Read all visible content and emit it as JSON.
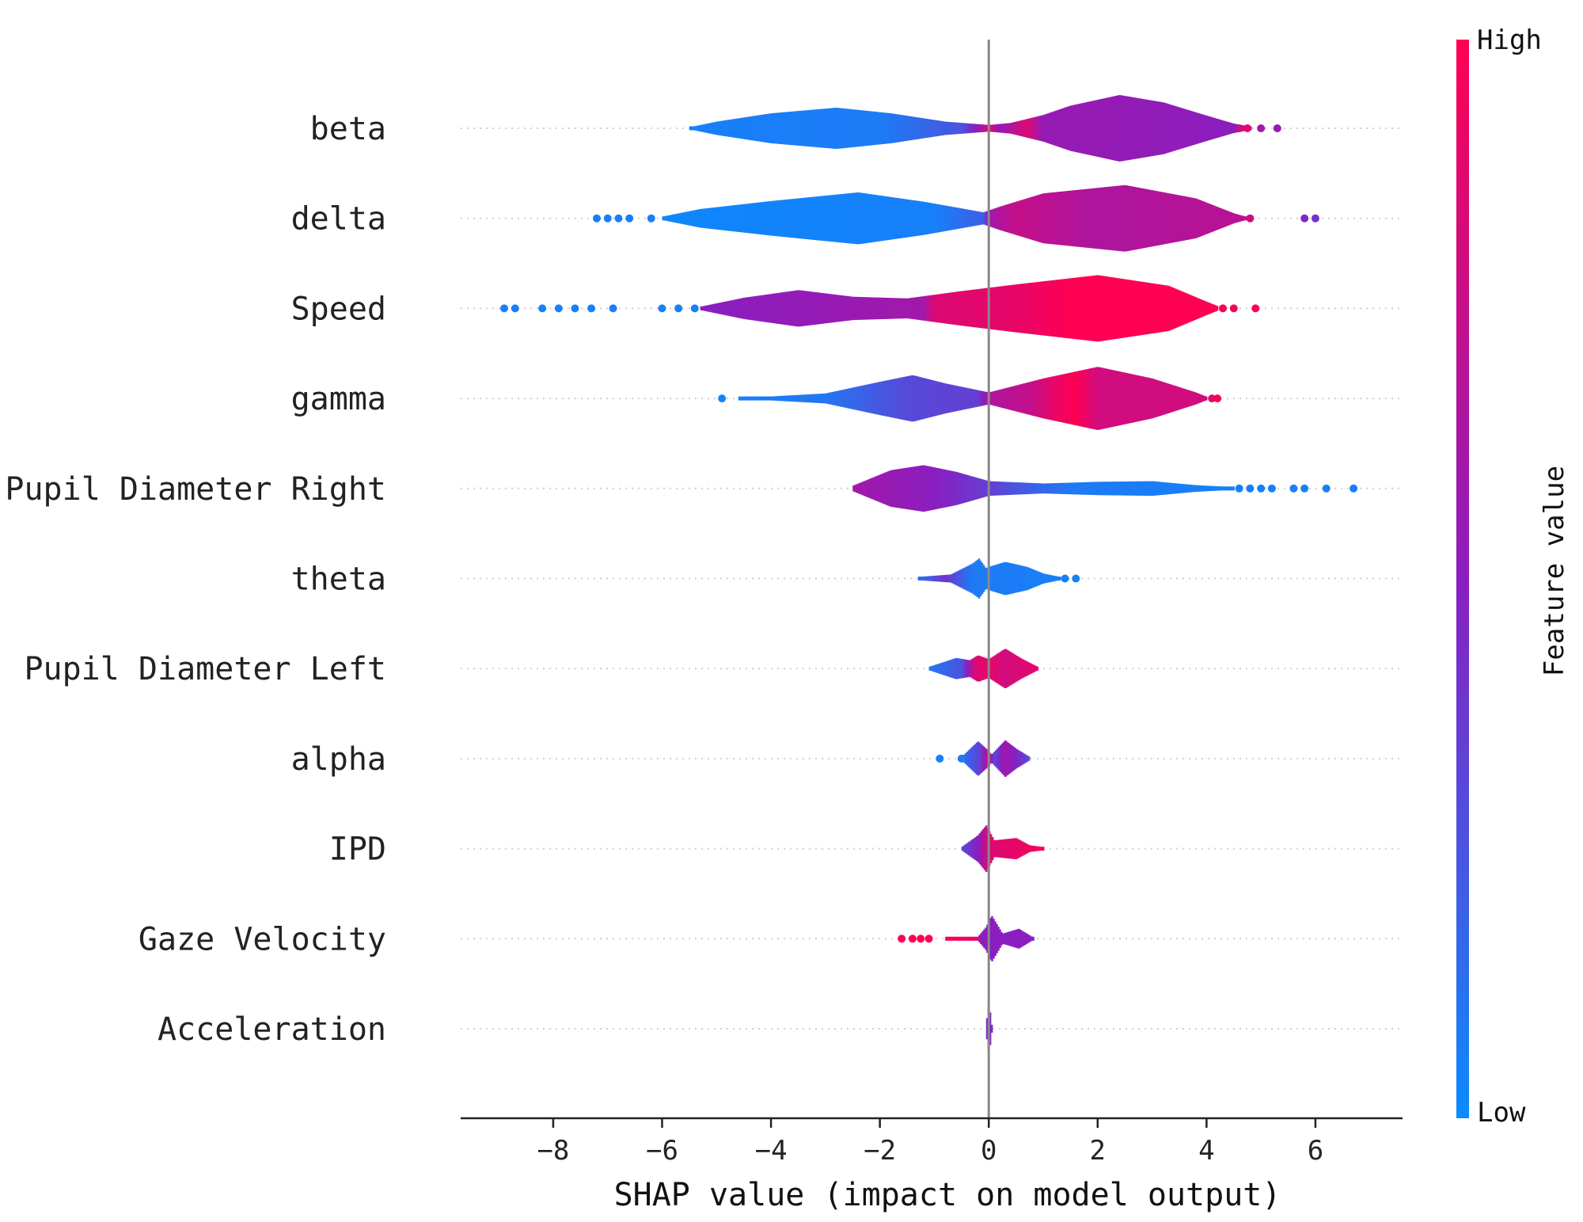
{
  "chart_data": {
    "type": "violin",
    "title": "",
    "xlabel": "SHAP value (impact on model output)",
    "ylabel": "",
    "xlim": [
      -9.7,
      7.6
    ],
    "xticks": [
      -8,
      -6,
      -4,
      -2,
      0,
      2,
      4,
      6
    ],
    "xtick_labels": [
      "−8",
      "−6",
      "−4",
      "−2",
      "0",
      "2",
      "4",
      "6"
    ],
    "colorbar": {
      "label": "Feature value",
      "high_label": "High",
      "low_label": "Low",
      "high_color": "#ff0052",
      "mid_color": "#8a1ec0",
      "low_color": "#0a8bff"
    },
    "features": [
      {
        "name": "beta",
        "range": [
          -5.5,
          5.4
        ],
        "violin": [
          [
            -5.5,
            0.03
          ],
          [
            -5.0,
            0.2
          ],
          [
            -4.0,
            0.45
          ],
          [
            -2.8,
            0.62
          ],
          [
            -1.8,
            0.45
          ],
          [
            -0.8,
            0.2
          ],
          [
            0.0,
            0.1
          ],
          [
            0.4,
            0.16
          ],
          [
            1.0,
            0.4
          ],
          [
            1.5,
            0.68
          ],
          [
            2.4,
            1.0
          ],
          [
            3.2,
            0.78
          ],
          [
            4.0,
            0.38
          ],
          [
            4.5,
            0.14
          ],
          [
            4.8,
            0.05
          ]
        ],
        "colors": [
          [
            -5.5,
            0.05
          ],
          [
            -2.0,
            0.07
          ],
          [
            -0.5,
            0.25
          ],
          [
            -0.15,
            0.6
          ],
          [
            0.0,
            0.9
          ],
          [
            0.2,
            0.55
          ],
          [
            0.7,
            0.85
          ],
          [
            1.0,
            0.55
          ],
          [
            2.0,
            0.55
          ],
          [
            4.8,
            0.5
          ]
        ],
        "dots": [
          [
            4.6,
            0.8
          ],
          [
            4.75,
            0.9
          ],
          [
            5.0,
            0.6
          ],
          [
            5.3,
            0.55
          ]
        ]
      },
      {
        "name": "delta",
        "range": [
          -7.2,
          6.0
        ],
        "violin": [
          [
            -6.0,
            0.05
          ],
          [
            -5.3,
            0.28
          ],
          [
            -4.0,
            0.52
          ],
          [
            -2.4,
            0.78
          ],
          [
            -1.2,
            0.5
          ],
          [
            -0.1,
            0.18
          ],
          [
            0.2,
            0.35
          ],
          [
            1.0,
            0.75
          ],
          [
            2.5,
            1.0
          ],
          [
            3.8,
            0.6
          ],
          [
            4.5,
            0.15
          ],
          [
            4.7,
            0.06
          ]
        ],
        "colors": [
          [
            -6.0,
            0.02
          ],
          [
            -1.0,
            0.05
          ],
          [
            -0.1,
            0.2
          ],
          [
            0.0,
            0.6
          ],
          [
            0.5,
            0.75
          ],
          [
            2.0,
            0.65
          ],
          [
            4.7,
            0.7
          ]
        ],
        "dots": [
          [
            -7.2,
            0.05
          ],
          [
            -7.0,
            0.05
          ],
          [
            -6.8,
            0.05
          ],
          [
            -6.6,
            0.05
          ],
          [
            -6.2,
            0.05
          ],
          [
            4.8,
            0.8
          ],
          [
            5.8,
            0.45
          ],
          [
            6.0,
            0.4
          ]
        ]
      },
      {
        "name": "Speed",
        "range": [
          -9.0,
          5.0
        ],
        "violin": [
          [
            -5.3,
            0.05
          ],
          [
            -4.5,
            0.32
          ],
          [
            -3.5,
            0.55
          ],
          [
            -2.5,
            0.35
          ],
          [
            -1.5,
            0.3
          ],
          [
            -0.5,
            0.52
          ],
          [
            0.5,
            0.72
          ],
          [
            2.0,
            1.0
          ],
          [
            3.3,
            0.68
          ],
          [
            4.0,
            0.2
          ],
          [
            4.2,
            0.07
          ]
        ],
        "colors": [
          [
            -5.3,
            0.5
          ],
          [
            -3.0,
            0.55
          ],
          [
            -1.2,
            0.6
          ],
          [
            -1.0,
            0.85
          ],
          [
            0.5,
            0.9
          ],
          [
            1.5,
            1.0
          ],
          [
            4.2,
            1.0
          ]
        ],
        "dots": [
          [
            -8.9,
            0.05
          ],
          [
            -8.7,
            0.05
          ],
          [
            -8.2,
            0.05
          ],
          [
            -7.9,
            0.05
          ],
          [
            -7.6,
            0.05
          ],
          [
            -7.3,
            0.05
          ],
          [
            -6.9,
            0.05
          ],
          [
            -6.0,
            0.05
          ],
          [
            -5.7,
            0.05
          ],
          [
            -5.4,
            0.05
          ],
          [
            4.3,
            0.95
          ],
          [
            4.5,
            0.95
          ],
          [
            4.9,
            1.0
          ]
        ]
      },
      {
        "name": "gamma",
        "range": [
          -4.9,
          4.2
        ],
        "violin": [
          [
            -4.6,
            0.03
          ],
          [
            -4.0,
            0.06
          ],
          [
            -3.0,
            0.15
          ],
          [
            -2.0,
            0.5
          ],
          [
            -1.4,
            0.7
          ],
          [
            -0.8,
            0.45
          ],
          [
            0.0,
            0.18
          ],
          [
            1.0,
            0.6
          ],
          [
            2.0,
            0.95
          ],
          [
            3.0,
            0.6
          ],
          [
            3.8,
            0.18
          ],
          [
            4.0,
            0.05
          ]
        ],
        "colors": [
          [
            -4.6,
            0.05
          ],
          [
            -3.0,
            0.1
          ],
          [
            -1.5,
            0.3
          ],
          [
            -0.2,
            0.35
          ],
          [
            0.0,
            0.65
          ],
          [
            0.8,
            0.75
          ],
          [
            1.2,
            0.9
          ],
          [
            1.6,
            1.0
          ],
          [
            2.0,
            0.8
          ],
          [
            4.0,
            0.8
          ]
        ],
        "dots": [
          [
            -4.9,
            0.05
          ],
          [
            4.1,
            0.9
          ],
          [
            4.2,
            0.95
          ]
        ]
      },
      {
        "name": "Pupil Diameter Right",
        "range": [
          -2.5,
          6.7
        ],
        "violin": [
          [
            -2.5,
            0.08
          ],
          [
            -1.8,
            0.55
          ],
          [
            -1.2,
            0.7
          ],
          [
            -0.6,
            0.5
          ],
          [
            0.0,
            0.22
          ],
          [
            1.0,
            0.15
          ],
          [
            2.0,
            0.2
          ],
          [
            3.0,
            0.22
          ],
          [
            3.8,
            0.1
          ],
          [
            4.5,
            0.04
          ]
        ],
        "colors": [
          [
            -2.5,
            0.6
          ],
          [
            -1.0,
            0.5
          ],
          [
            0.0,
            0.35
          ],
          [
            0.5,
            0.25
          ],
          [
            1.5,
            0.08
          ],
          [
            4.5,
            0.05
          ]
        ],
        "dots": [
          [
            4.6,
            0.05
          ],
          [
            4.8,
            0.05
          ],
          [
            5.0,
            0.05
          ],
          [
            5.2,
            0.05
          ],
          [
            5.6,
            0.05
          ],
          [
            5.8,
            0.05
          ],
          [
            6.2,
            0.05
          ],
          [
            6.7,
            0.05
          ]
        ]
      },
      {
        "name": "theta",
        "range": [
          -1.4,
          1.6
        ],
        "violin": [
          [
            -1.3,
            0.05
          ],
          [
            -0.7,
            0.12
          ],
          [
            -0.3,
            0.45
          ],
          [
            -0.18,
            0.6
          ],
          [
            -0.05,
            0.3
          ],
          [
            0.0,
            0.35
          ],
          [
            0.3,
            0.5
          ],
          [
            0.7,
            0.35
          ],
          [
            1.0,
            0.15
          ],
          [
            1.3,
            0.05
          ]
        ],
        "colors": [
          [
            -1.3,
            0.1
          ],
          [
            -0.8,
            0.4
          ],
          [
            -0.5,
            0.2
          ],
          [
            -0.3,
            0.08
          ],
          [
            1.3,
            0.05
          ]
        ],
        "dots": [
          [
            1.4,
            0.05
          ],
          [
            1.6,
            0.05
          ]
        ]
      },
      {
        "name": "Pupil Diameter Left",
        "range": [
          -1.1,
          0.9
        ],
        "violin": [
          [
            -1.1,
            0.05
          ],
          [
            -0.6,
            0.32
          ],
          [
            -0.35,
            0.25
          ],
          [
            -0.2,
            0.4
          ],
          [
            0.0,
            0.28
          ],
          [
            0.3,
            0.6
          ],
          [
            0.6,
            0.3
          ],
          [
            0.9,
            0.05
          ]
        ],
        "colors": [
          [
            -1.1,
            0.1
          ],
          [
            -0.5,
            0.25
          ],
          [
            -0.25,
            0.85
          ],
          [
            0.0,
            0.9
          ],
          [
            0.3,
            0.8
          ],
          [
            0.9,
            0.9
          ]
        ],
        "dots": []
      },
      {
        "name": "alpha",
        "range": [
          -0.9,
          0.8
        ],
        "violin": [
          [
            -0.5,
            0.05
          ],
          [
            -0.2,
            0.52
          ],
          [
            -0.05,
            0.3
          ],
          [
            0.05,
            0.12
          ],
          [
            0.3,
            0.55
          ],
          [
            0.5,
            0.3
          ],
          [
            0.75,
            0.05
          ]
        ],
        "colors": [
          [
            -0.5,
            0.1
          ],
          [
            -0.15,
            0.35
          ],
          [
            0.0,
            0.8
          ],
          [
            0.1,
            0.3
          ],
          [
            0.3,
            0.6
          ],
          [
            0.75,
            0.3
          ]
        ],
        "dots": [
          [
            -0.9,
            0.05
          ],
          [
            -0.5,
            0.08
          ]
        ]
      },
      {
        "name": "IPD",
        "range": [
          -0.5,
          1.0
        ],
        "violin": [
          [
            -0.5,
            0.05
          ],
          [
            -0.2,
            0.4
          ],
          [
            -0.05,
            0.7
          ],
          [
            0.1,
            0.25
          ],
          [
            0.5,
            0.32
          ],
          [
            0.75,
            0.1
          ],
          [
            1.0,
            0.05
          ]
        ],
        "colors": [
          [
            -0.5,
            0.3
          ],
          [
            -0.2,
            0.5
          ],
          [
            0.0,
            0.85
          ],
          [
            0.5,
            0.9
          ],
          [
            1.0,
            0.95
          ]
        ],
        "dots": []
      },
      {
        "name": "Gaze Velocity",
        "range": [
          -1.6,
          0.8
        ],
        "violin": [
          [
            -0.8,
            0.04
          ],
          [
            -0.2,
            0.06
          ],
          [
            -0.05,
            0.35
          ],
          [
            0.05,
            0.7
          ],
          [
            0.25,
            0.15
          ],
          [
            0.55,
            0.3
          ],
          [
            0.8,
            0.05
          ]
        ],
        "colors": [
          [
            -0.8,
            1.0
          ],
          [
            -0.3,
            0.95
          ],
          [
            -0.1,
            0.5
          ],
          [
            0.2,
            0.5
          ],
          [
            0.8,
            0.5
          ]
        ],
        "dots": [
          [
            -1.6,
            1.0
          ],
          [
            -1.4,
            1.0
          ],
          [
            -1.25,
            1.0
          ],
          [
            -1.1,
            1.0
          ]
        ]
      },
      {
        "name": "Acceleration",
        "range": [
          -0.05,
          0.05
        ],
        "violin": [
          [
            -0.05,
            0.12
          ],
          [
            0.0,
            0.8
          ],
          [
            0.05,
            0.12
          ]
        ],
        "colors": [
          [
            -0.05,
            0.45
          ],
          [
            0.05,
            0.45
          ]
        ],
        "dots": []
      }
    ]
  }
}
